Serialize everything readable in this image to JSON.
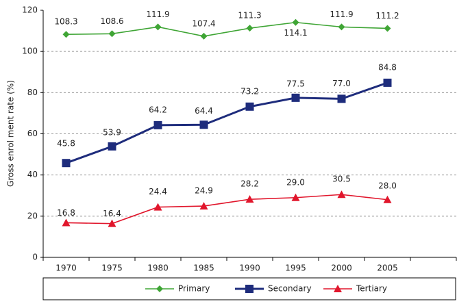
{
  "chart_data": {
    "type": "line",
    "y_label": "Gross enrol ment rate (%)",
    "categories": [
      "1970",
      "1975",
      "1980",
      "1985",
      "1990",
      "1995",
      "2000",
      "2005",
      null
    ],
    "series": [
      {
        "name": "Primary",
        "color": "#3fa535",
        "marker": "diamond",
        "values": [
          108.3,
          108.6,
          111.9,
          107.4,
          111.3,
          114.1,
          111.9,
          111.2,
          null
        ],
        "value_labels": [
          "108.3",
          "108.6",
          "111.9",
          "107.4",
          "111.3",
          "114.1",
          "111.9",
          "111.2",
          null
        ]
      },
      {
        "name": "Secondary",
        "color": "#1e2c7c",
        "marker": "square",
        "values": [
          45.8,
          53.9,
          64.2,
          64.4,
          73.2,
          77.5,
          77.0,
          84.8,
          null
        ],
        "value_labels": [
          "45.8",
          "53.9",
          "64.2",
          "64.4",
          "73.2",
          "77.5",
          "77.0",
          "84.8",
          null
        ]
      },
      {
        "name": "Tertiary",
        "color": "#e1162c",
        "marker": "triangle",
        "values": [
          16.8,
          16.4,
          24.4,
          24.9,
          28.2,
          29.0,
          30.5,
          28.0,
          null
        ],
        "value_labels": [
          "16.8",
          "16.4",
          "24.4",
          "24.9",
          "28.2",
          "29.0",
          "30.5",
          "28.0",
          null
        ]
      }
    ],
    "ylim": [
      0,
      120
    ],
    "yticks": [
      0,
      20,
      40,
      60,
      80,
      100,
      120
    ],
    "grid": true,
    "legend": "bottom"
  }
}
